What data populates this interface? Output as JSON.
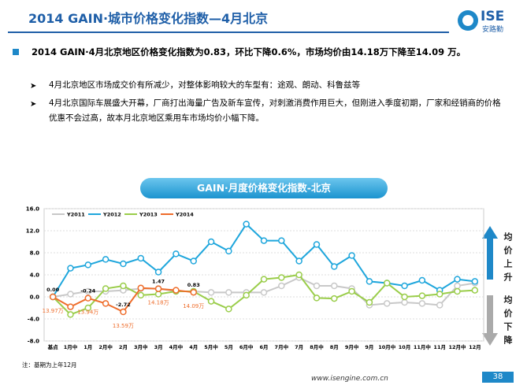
{
  "header": {
    "title": "2014 GAIN·城市价格变化指数—4月北京",
    "logo": "ISE",
    "logo_sub": "安路勤"
  },
  "bullets": [
    "2014 GAIN·4月北京地区价格变化指数为0.83，环比下降0.6%，市场均价由14.18万下降至14.09 万。",
    "4月北京地区市场成交价有所减少，对整体影响较大的车型有：途观、朗动、科鲁兹等",
    "4月北京国际车展盛大开幕，厂商打出海量广告及新车宣传，对刺激消费作用巨大，但刚进入季度初期，厂家和经销商的价格优惠不会过高，故本月北京地区乘用车市场均价小幅下降。"
  ],
  "side": {
    "up": "均价上升",
    "down": "均价下降"
  },
  "note": "注：基期为上年12月",
  "url": "www.isengine.com.cn",
  "page": "38",
  "chart_data": {
    "type": "line",
    "title": "GAIN·月度价格变化指数-北京",
    "categories": [
      "基点",
      "1月中",
      "1月",
      "2月中",
      "2月",
      "3月中",
      "3月",
      "4月中",
      "4月",
      "5月中",
      "5月",
      "6月中",
      "6月",
      "7月中",
      "7月",
      "8月中",
      "8月",
      "9月中",
      "9月",
      "10月中",
      "10月",
      "11月中",
      "11月",
      "12月中",
      "12月"
    ],
    "ylim": [
      -8,
      16
    ],
    "yticks": [
      {
        "value": 16,
        "label": "16.0"
      },
      {
        "value": 12,
        "label": "12.0"
      },
      {
        "value": 8,
        "label": "8.0"
      },
      {
        "value": 4,
        "label": "4.0"
      },
      {
        "value": 0,
        "label": "0.0"
      },
      {
        "value": -4,
        "label": "-4.0"
      },
      {
        "value": -8,
        "label": "-8.0"
      }
    ],
    "grid": true,
    "series": [
      {
        "name": "Y2011",
        "color": "#c8c8c8",
        "values": [
          0,
          0.5,
          1,
          1,
          1.2,
          1.5,
          1.5,
          1,
          1,
          0.8,
          0.8,
          0.8,
          0.8,
          2,
          3.5,
          2,
          2,
          1.5,
          -1.5,
          -1.2,
          -1,
          -1.2,
          -1.5,
          2,
          2.5
        ]
      },
      {
        "name": "Y2012",
        "color": "#1ea6dc",
        "values": [
          0,
          5.2,
          5.8,
          6.8,
          6,
          7,
          4.5,
          7.8,
          6.5,
          10,
          8.3,
          13.2,
          10.2,
          10.2,
          6.5,
          9.5,
          5.5,
          7.5,
          2.8,
          2.5,
          2,
          3,
          1.2,
          3.2,
          2.8
        ]
      },
      {
        "name": "Y2013",
        "color": "#9acd4a",
        "values": [
          0,
          -3.2,
          -2,
          1.5,
          2,
          0.3,
          0.5,
          1,
          1,
          -0.8,
          -2.2,
          0.3,
          3.2,
          3.5,
          4,
          -0.2,
          -0.3,
          1,
          -1,
          2.5,
          0,
          0.2,
          0.5,
          1,
          1.2
        ]
      },
      {
        "name": "Y2014",
        "color": "#ee6c2a",
        "values": [
          0,
          -1.8,
          -0.24,
          -1.2,
          -2.72,
          1.6,
          1.47,
          1.2,
          0.83,
          null,
          null,
          null,
          null,
          null,
          null,
          null,
          null,
          null,
          null,
          null,
          null,
          null,
          null,
          null,
          null
        ],
        "value_labels": [
          "0.00",
          null,
          "-0.24",
          null,
          "-2.72",
          null,
          "1.47",
          null,
          "0.83",
          null,
          null,
          null,
          null,
          null,
          null,
          null,
          null,
          null,
          null,
          null,
          null,
          null,
          null,
          null,
          null
        ],
        "price_labels": [
          "13.97万",
          null,
          "13.94万",
          null,
          "13.59万",
          null,
          "14.18万",
          null,
          "14.09万",
          null,
          null,
          null,
          null,
          null,
          null,
          null,
          null,
          null,
          null,
          null,
          null,
          null,
          null,
          null,
          null
        ]
      }
    ]
  }
}
